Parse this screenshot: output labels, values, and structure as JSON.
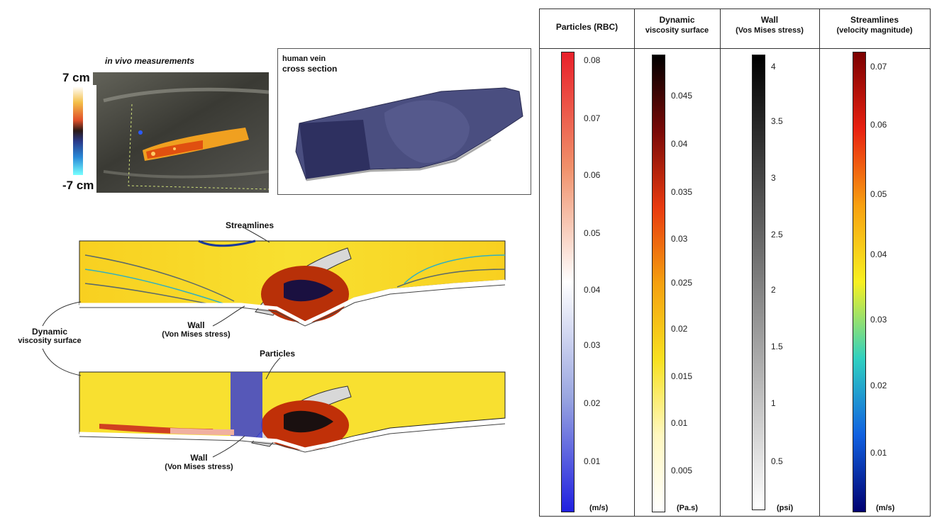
{
  "ultrasound": {
    "title": "in vivo measurements",
    "top_label": "7 cm",
    "bottom_label": "-7 cm"
  },
  "vein": {
    "title_line1": "human vein",
    "title_line2": "cross section"
  },
  "annotations": {
    "streamlines": "Streamlines",
    "wall_top": "Wall",
    "wall_top_sub": "(Von Mises stress)",
    "dynamic": "Dynamic",
    "dynamic_sub": "viscosity surface",
    "particles": "Particles",
    "wall_bottom": "Wall",
    "wall_bottom_sub": "(Von Mises stress)"
  },
  "colorbars": [
    {
      "title": "Particles (RBC)",
      "subtitle": "",
      "unit": "(m/s)",
      "ticks": [
        "0.08",
        "0.07",
        "0.06",
        "0.05",
        "0.04",
        "0.03",
        "0.02",
        "0.01"
      ],
      "gradient": [
        "#e8202a",
        "#f0906a",
        "#ffffff",
        "#9aa6e0",
        "#2020e0"
      ]
    },
    {
      "title": "Dynamic",
      "subtitle": "viscosity surface",
      "unit": "(Pa.s)",
      "ticks": [
        "0.045",
        "0.04",
        "0.035",
        "0.03",
        "0.025",
        "0.02",
        "0.015",
        "0.01",
        "0.005"
      ],
      "gradient": [
        "#000000",
        "#7a0a08",
        "#e83a10",
        "#f5a010",
        "#f8e020",
        "#fff8c0",
        "#ffffff"
      ]
    },
    {
      "title": "Wall",
      "subtitle": "(Vos Mises stress)",
      "unit": "(psi)",
      "ticks": [
        "4",
        "3.5",
        "3",
        "2.5",
        "2",
        "1.5",
        "1",
        "0.5"
      ],
      "gradient": [
        "#000000",
        "#ffffff"
      ]
    },
    {
      "title": "Streamlines",
      "subtitle": "(velocity magnitude)",
      "unit": "(m/s)",
      "ticks": [
        "0.07",
        "0.06",
        "0.05",
        "0.04",
        "0.03",
        "0.02",
        "0.01"
      ],
      "gradient": [
        "#7a0000",
        "#e82010",
        "#f8a010",
        "#f8f020",
        "#30d0c0",
        "#1060e0",
        "#000070"
      ]
    }
  ]
}
